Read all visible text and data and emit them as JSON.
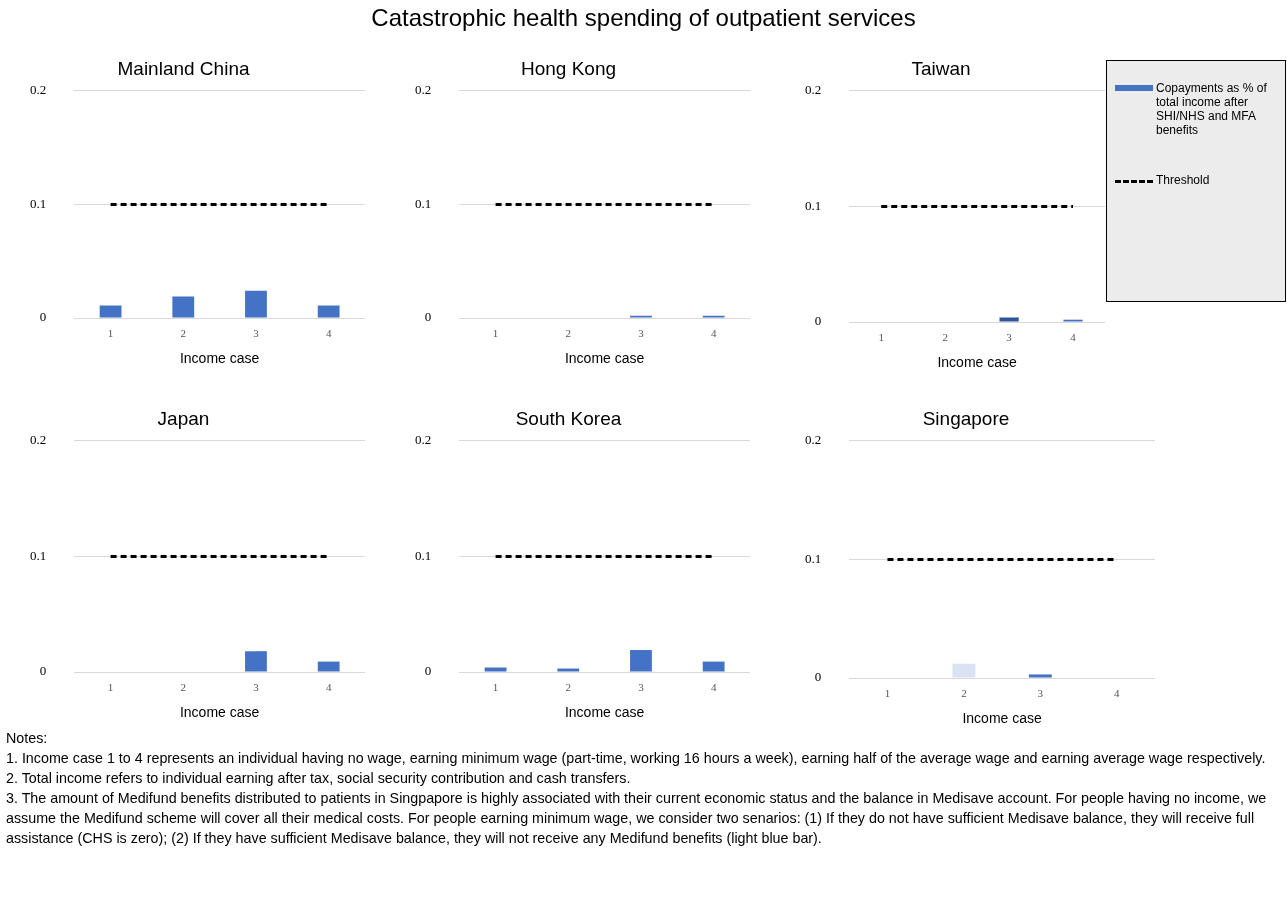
{
  "chart_data": [
    {
      "type": "other",
      "title": "Catastrophic health spending of outpatient services",
      "annotations": [
        "Notes:",
        "1. Income case 1 to 4 represents an individual having no wage, earning minimum wage (part-time, working 16 hours a week), earning half of the average wage and earning average wage respectively.",
        "2. Total income refers to individual earning after tax, social security contribution and cash transfers.",
        "3. The amount of Medifund benefits distributed to patients in Singpapore is highly associated with their current economic status and the balance in Medisave account.  For people having no income, we assume the Medifund scheme will cover all their medical costs. For people earning minimum wage, we consider two senarios: (1) If they do not have sufficient Medisave balance, they will receive full assistance (CHS is zero);   (2) If they have sufficient Medisave balance, they will not receive any Medifund benefits (light blue bar)."
      ]
    },
    {
      "type": "bar",
      "title": "Mainland China",
      "xlabel": "Income case",
      "categories": [
        "1",
        "2",
        "3",
        "4"
      ],
      "ylim": [
        0,
        0.2
      ],
      "yticks": [
        0,
        0.1,
        0.2
      ],
      "grid": "y",
      "legend": false,
      "series": [
        {
          "type": "bar",
          "color": "#4472c4",
          "values": [
            0.011,
            0.019,
            0.024,
            0.011
          ]
        },
        {
          "type": "line",
          "color": "#000000",
          "line_style": "dashed",
          "marker": "none",
          "values": [
            0.1,
            0.1,
            0.1,
            0.1
          ]
        }
      ]
    },
    {
      "type": "bar",
      "title": "Hong Kong",
      "xlabel": "Income case",
      "categories": [
        "1",
        "2",
        "3",
        "4"
      ],
      "ylim": [
        0,
        0.2
      ],
      "yticks": [
        0,
        0.1,
        0.2
      ],
      "grid": "y",
      "legend": false,
      "series": [
        {
          "type": "bar",
          "color": "#4472c4",
          "values": [
            0,
            0,
            0.002,
            0.002
          ]
        },
        {
          "type": "line",
          "color": "#000000",
          "line_style": "dashed",
          "marker": "none",
          "values": [
            0.1,
            0.1,
            0.1,
            0.1
          ]
        }
      ]
    },
    {
      "type": "bar",
      "title": "Taiwan",
      "xlabel": "Income case",
      "categories": [
        "1",
        "2",
        "3",
        "4"
      ],
      "ylim": [
        0,
        0.2
      ],
      "yticks": [
        0,
        0.1,
        0.2
      ],
      "grid": "y",
      "legend": "right",
      "series": [
        {
          "type": "bar",
          "name": "Copayments as % of total income after SHI/NHS and MFA benefits",
          "color": "#4472c4",
          "colors": [
            "#4472c4",
            "#4472c4",
            "#2f5597",
            "#4472c4"
          ],
          "values": [
            0,
            0,
            0.004,
            0.002
          ]
        },
        {
          "type": "line",
          "name": "Threshold",
          "color": "#000000",
          "line_style": "dashed",
          "marker": "none",
          "values": [
            0.1,
            0.1,
            0.1,
            0.1
          ]
        }
      ]
    },
    {
      "type": "bar",
      "title": "Japan",
      "xlabel": "Income case",
      "categories": [
        "1",
        "2",
        "3",
        "4"
      ],
      "ylim": [
        0,
        0.2
      ],
      "yticks": [
        0,
        0.1,
        0.2
      ],
      "grid": "y",
      "legend": false,
      "series": [
        {
          "type": "bar",
          "color": "#4472c4",
          "values": [
            0,
            0,
            0.018,
            0.009
          ]
        },
        {
          "type": "line",
          "color": "#000000",
          "line_style": "dashed",
          "marker": "none",
          "values": [
            0.1,
            0.1,
            0.1,
            0.1
          ]
        }
      ]
    },
    {
      "type": "bar",
      "title": "South Korea",
      "xlabel": "Income case",
      "categories": [
        "1",
        "2",
        "3",
        "4"
      ],
      "ylim": [
        0,
        0.2
      ],
      "yticks": [
        0,
        0.1,
        0.2
      ],
      "grid": "y",
      "legend": false,
      "series": [
        {
          "type": "bar",
          "color": "#4472c4",
          "values": [
            0.004,
            0.003,
            0.019,
            0.009
          ]
        },
        {
          "type": "line",
          "color": "#000000",
          "line_style": "dashed",
          "marker": "none",
          "values": [
            0.1,
            0.1,
            0.1,
            0.1
          ]
        }
      ]
    },
    {
      "type": "bar",
      "title": "Singapore",
      "xlabel": "Income case",
      "categories": [
        "1",
        "2",
        "3",
        "4"
      ],
      "ylim": [
        0,
        0.2
      ],
      "yticks": [
        0,
        0.1,
        0.2
      ],
      "grid": "y",
      "legend": false,
      "series": [
        {
          "type": "bar",
          "colors": [
            "#4472c4",
            "#dae3f3",
            "#4472c4",
            "#4472c4"
          ],
          "values": [
            0,
            0.012,
            0.003,
            0
          ]
        },
        {
          "type": "line",
          "color": "#000000",
          "line_style": "dashed",
          "marker": "none",
          "values": [
            0.1,
            0.1,
            0.1,
            0.1
          ]
        }
      ]
    }
  ]
}
